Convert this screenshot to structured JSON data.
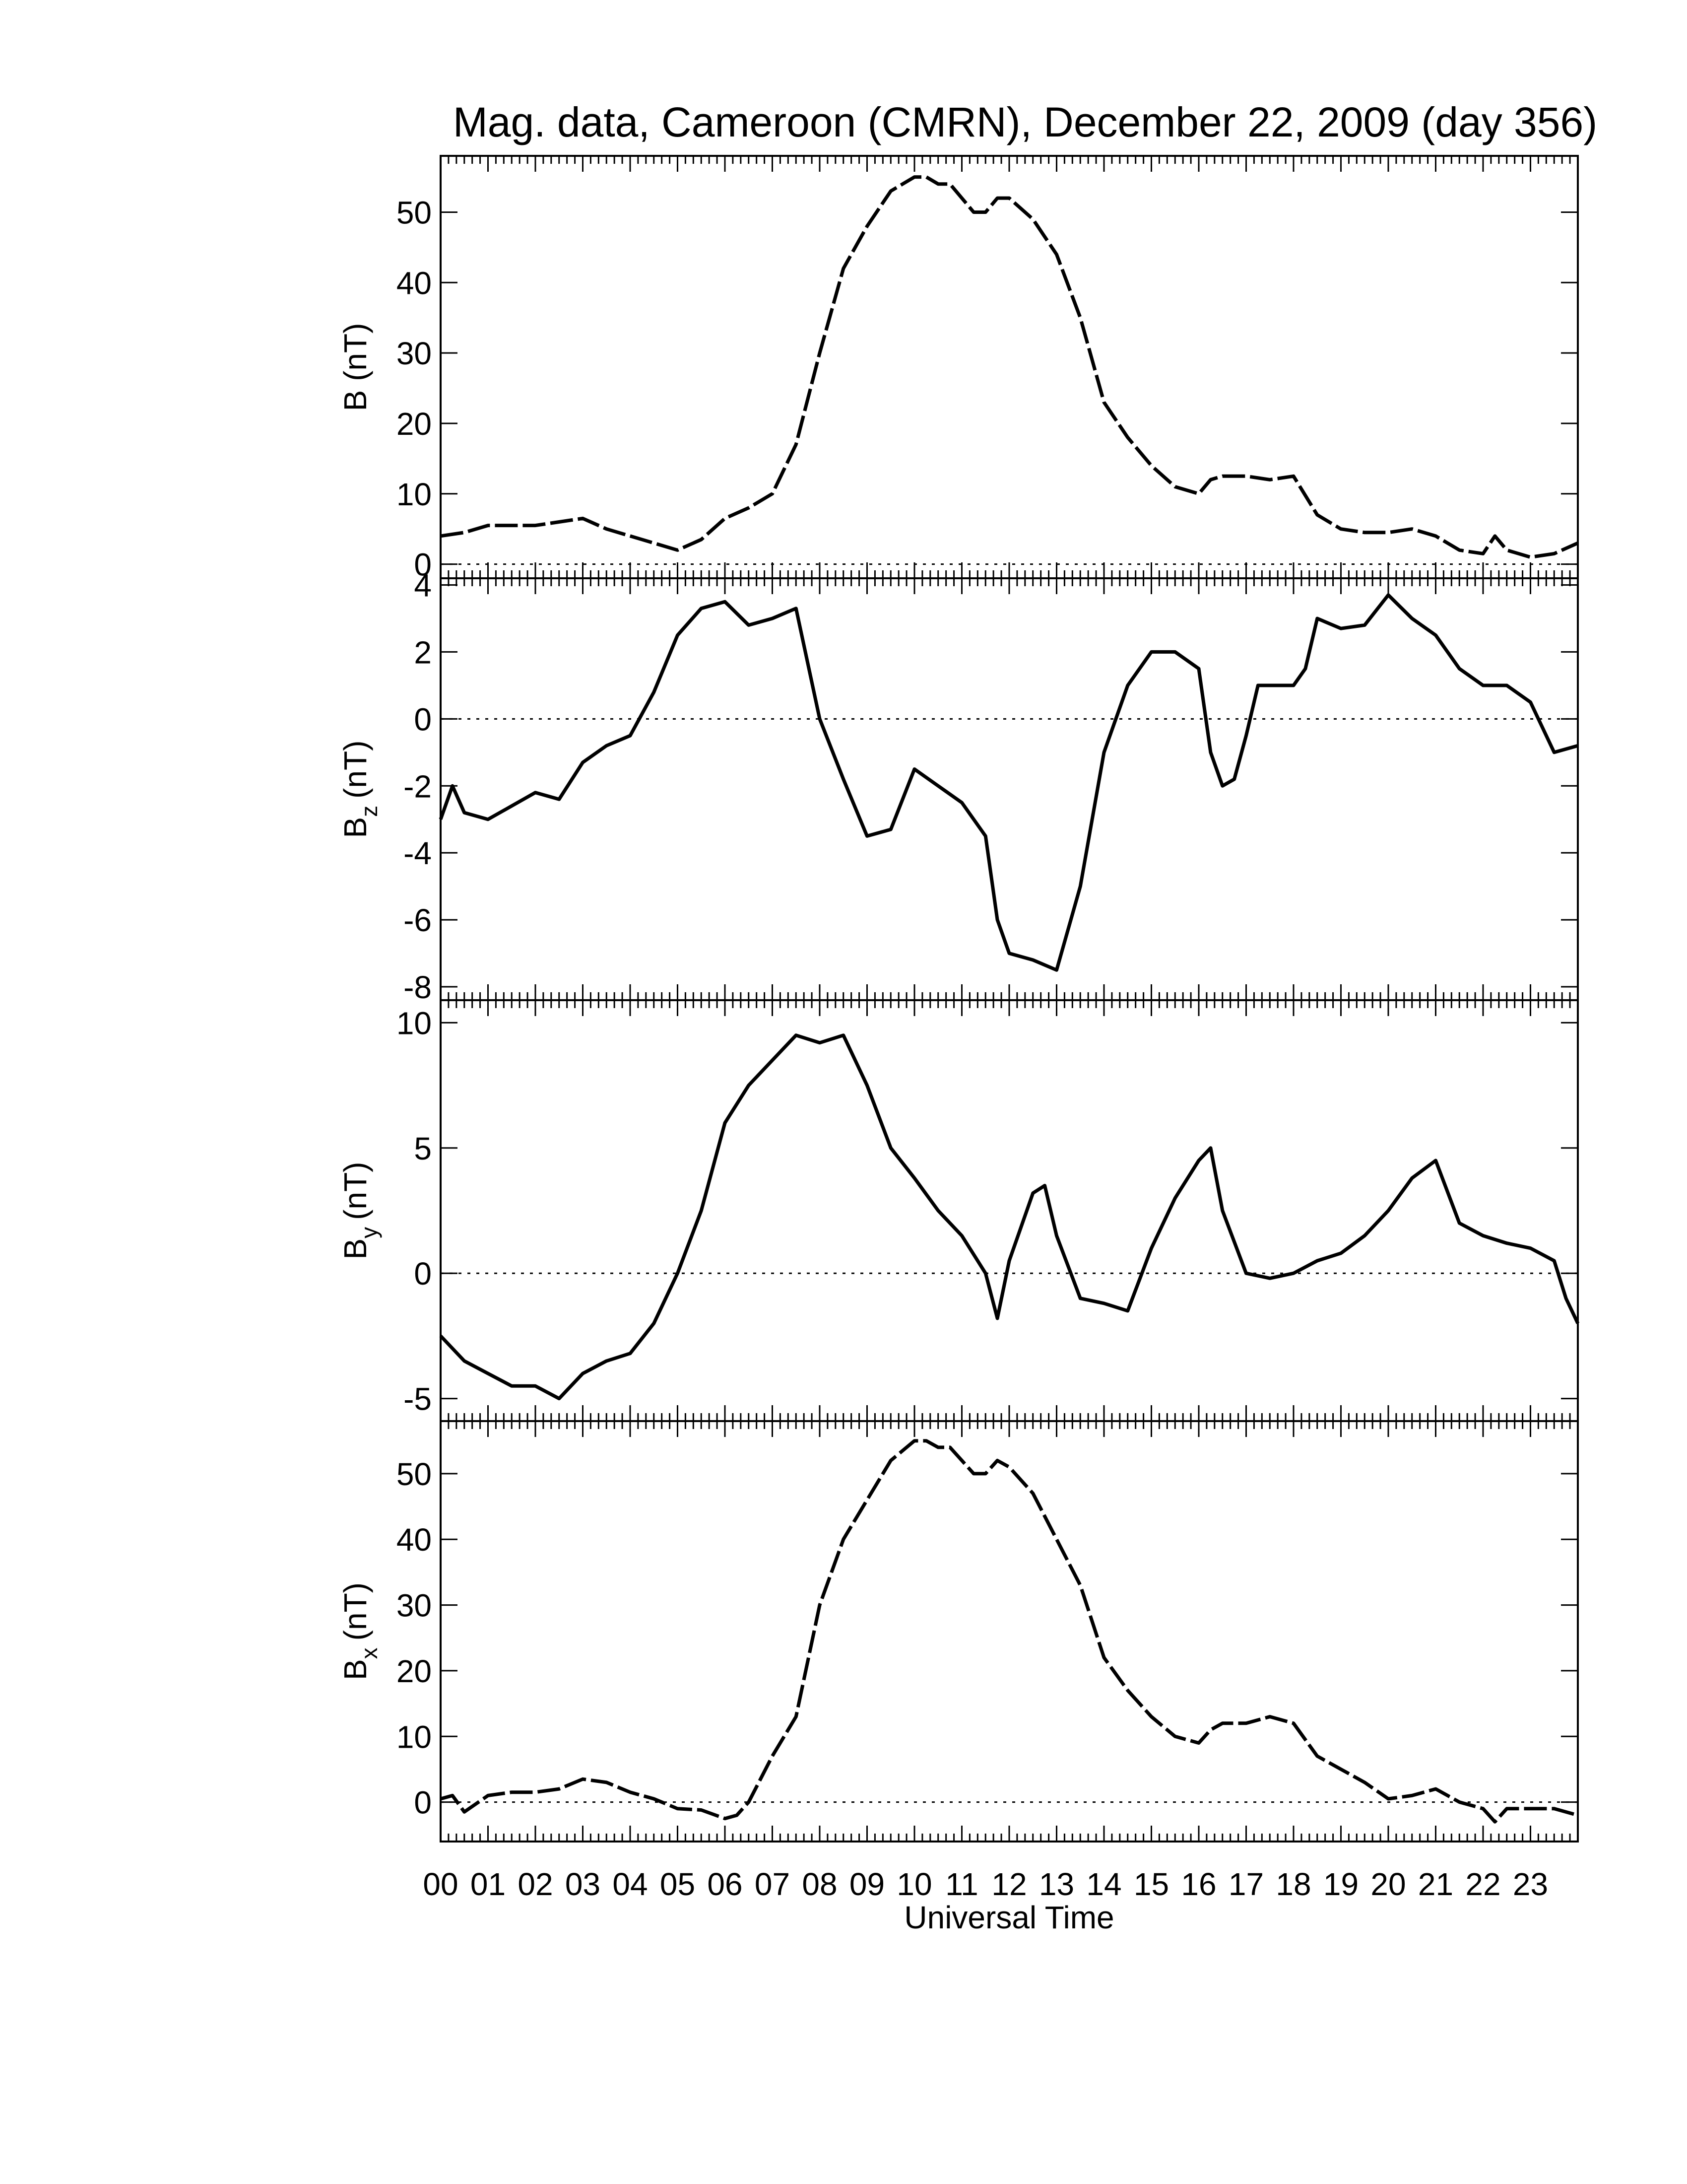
{
  "chart_data": {
    "type": "line",
    "title": "Mag. data, Cameroon (CMRN), December 22, 2009 (day 356)",
    "xlabel": "Universal Time",
    "x_ticks": [
      "00",
      "01",
      "02",
      "03",
      "04",
      "05",
      "06",
      "07",
      "08",
      "09",
      "10",
      "11",
      "12",
      "13",
      "14",
      "15",
      "16",
      "17",
      "18",
      "19",
      "20",
      "21",
      "22",
      "23"
    ],
    "xlim": [
      0,
      24
    ],
    "panels": [
      {
        "id": "B",
        "ylabel_main": "B (nT)",
        "ylabel_sub": "",
        "ylim": [
          -2,
          58
        ],
        "yticks": [
          0,
          10,
          20,
          30,
          40,
          50
        ],
        "ytick_labels": [
          "0",
          "10",
          "20",
          "30",
          "40",
          "50"
        ],
        "zero_line": true,
        "series": [
          {
            "x": [
              0,
              0.5,
              1,
              1.5,
              2,
              2.5,
              3,
              3.5,
              4,
              4.5,
              5,
              5.5,
              6,
              6.5,
              7,
              7.5,
              8,
              8.5,
              9,
              9.5,
              10,
              10.25,
              10.5,
              10.75,
              11,
              11.25,
              11.5,
              11.75,
              12,
              12.5,
              13,
              13.5,
              14,
              14.5,
              15,
              15.5,
              16,
              16.25,
              16.5,
              17,
              17.5,
              18,
              18.5,
              19,
              19.5,
              20,
              20.5,
              21,
              21.5,
              22,
              22.25,
              22.5,
              23,
              23.5,
              24
            ],
            "y": [
              4,
              4.5,
              5.5,
              5.5,
              5.5,
              6,
              6.5,
              5,
              4,
              3,
              2,
              3.5,
              6.5,
              8,
              10,
              17,
              30,
              42,
              48,
              53,
              55,
              55,
              54,
              54,
              52,
              50,
              50,
              52,
              52,
              49,
              44,
              35,
              23,
              18,
              14,
              11,
              10,
              12,
              12.5,
              12.5,
              12,
              12.5,
              7,
              5,
              4.5,
              4.5,
              5,
              4,
              2,
              1.5,
              4,
              2,
              1,
              1.5,
              3
            ]
          }
        ]
      },
      {
        "id": "Bz",
        "ylabel_main": "B",
        "ylabel_sub": "z",
        "ylabel_unit": "(nT)",
        "ylim": [
          -8.4,
          4.2
        ],
        "yticks": [
          -8,
          -6,
          -4,
          -2,
          0,
          2,
          4
        ],
        "ytick_labels": [
          "-8",
          "-6",
          "-4",
          "-2",
          "0",
          "2",
          "4"
        ],
        "zero_line": true,
        "series": [
          {
            "x": [
              0,
              0.25,
              0.5,
              1,
              1.5,
              2,
              2.5,
              3,
              3.5,
              4,
              4.5,
              5,
              5.5,
              6,
              6.5,
              7,
              7.5,
              8,
              8.5,
              9,
              9.5,
              10,
              10.5,
              11,
              11.5,
              11.75,
              12,
              12.5,
              13,
              13.5,
              14,
              14.5,
              15,
              15.5,
              16,
              16.25,
              16.5,
              16.75,
              17,
              17.25,
              17.5,
              18,
              18.25,
              18.5,
              19,
              19.5,
              20,
              20.5,
              21,
              21.5,
              22,
              22.5,
              23,
              23.5,
              24
            ],
            "y": [
              -3,
              -2,
              -2.8,
              -3,
              -2.6,
              -2.2,
              -2.4,
              -1.3,
              -0.8,
              -0.5,
              0.8,
              2.5,
              3.3,
              3.5,
              2.8,
              3,
              3.3,
              0,
              -1.8,
              -3.5,
              -3.3,
              -1.5,
              -2,
              -2.5,
              -3.5,
              -6,
              -7,
              -7.2,
              -7.5,
              -5,
              -1,
              1,
              2,
              2,
              1.5,
              -1,
              -2,
              -1.8,
              -0.5,
              1,
              1,
              1,
              1.5,
              3,
              2.7,
              2.8,
              3.7,
              3,
              2.5,
              1.5,
              1,
              1,
              0.5,
              -1,
              -0.8
            ]
          }
        ]
      },
      {
        "id": "By",
        "ylabel_main": "B",
        "ylabel_sub": "y",
        "ylabel_unit": "(nT)",
        "ylim": [
          -5.9,
          10.9
        ],
        "yticks": [
          -5,
          0,
          5,
          10
        ],
        "ytick_labels": [
          "-5",
          "0",
          "5",
          "10"
        ],
        "zero_line": true,
        "series": [
          {
            "x": [
              0,
              0.5,
              1,
              1.5,
              2,
              2.5,
              3,
              3.5,
              4,
              4.5,
              5,
              5.5,
              6,
              6.5,
              7,
              7.5,
              8,
              8.5,
              9,
              9.5,
              10,
              10.5,
              11,
              11.5,
              11.75,
              12,
              12.5,
              12.75,
              13,
              13.5,
              14,
              14.5,
              15,
              15.5,
              16,
              16.25,
              16.5,
              17,
              17.5,
              18,
              18.5,
              19,
              19.5,
              20,
              20.5,
              21,
              21.5,
              22,
              22.5,
              23,
              23.5,
              23.75,
              24
            ],
            "y": [
              -2.5,
              -3.5,
              -4,
              -4.5,
              -4.5,
              -5,
              -4,
              -3.5,
              -3.2,
              -2,
              0,
              2.5,
              6,
              7.5,
              8.5,
              9.5,
              9.2,
              9.5,
              7.5,
              5,
              3.8,
              2.5,
              1.5,
              0,
              -1.8,
              0.5,
              3.2,
              3.5,
              1.5,
              -1,
              -1.2,
              -1.5,
              1,
              3,
              4.5,
              5,
              2.5,
              0,
              -0.2,
              0,
              0.5,
              0.8,
              1.5,
              2.5,
              3.8,
              4.5,
              2,
              1.5,
              1.2,
              1,
              0.5,
              -1,
              -2
            ]
          }
        ]
      },
      {
        "id": "Bx",
        "ylabel_main": "B",
        "ylabel_sub": "x",
        "ylabel_unit": "(nT)",
        "ylim": [
          -6,
          58
        ],
        "yticks": [
          0,
          10,
          20,
          30,
          40,
          50
        ],
        "ytick_labels": [
          "0",
          "10",
          "20",
          "30",
          "40",
          "50"
        ],
        "zero_line": true,
        "series": [
          {
            "x": [
              0,
              0.25,
              0.5,
              1,
              1.5,
              2,
              2.5,
              3,
              3.5,
              4,
              4.5,
              5,
              5.5,
              6,
              6.25,
              6.5,
              7,
              7.5,
              8,
              8.5,
              9,
              9.5,
              10,
              10.25,
              10.5,
              10.75,
              11,
              11.25,
              11.5,
              11.75,
              12,
              12.5,
              13,
              13.5,
              14,
              14.5,
              15,
              15.5,
              16,
              16.25,
              16.5,
              17,
              17.5,
              18,
              18.5,
              19,
              19.5,
              20,
              20.5,
              21,
              21.5,
              22,
              22.25,
              22.5,
              23,
              23.5,
              24
            ],
            "y": [
              0.5,
              1,
              -1.5,
              1,
              1.5,
              1.5,
              2,
              3.5,
              3,
              1.5,
              0.5,
              -1,
              -1.2,
              -2.5,
              -2,
              0,
              7,
              13,
              30,
              40,
              46,
              52,
              55,
              55,
              54,
              54,
              52,
              50,
              50,
              52,
              51,
              47,
              40,
              33,
              22,
              17,
              13,
              10,
              9,
              11,
              12,
              12,
              13,
              12,
              7,
              5,
              3,
              0.5,
              1,
              2,
              0,
              -1,
              -3,
              -1,
              -1,
              -1,
              -2
            ]
          }
        ]
      }
    ]
  }
}
